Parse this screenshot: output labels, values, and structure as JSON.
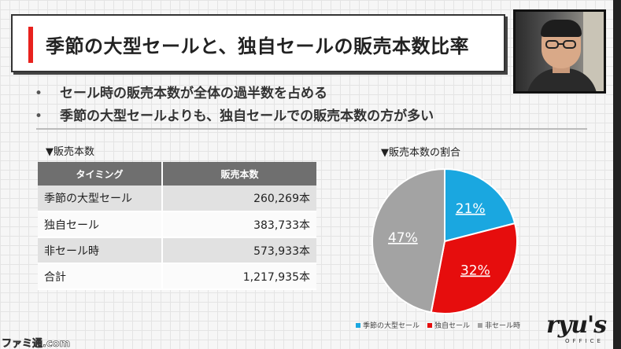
{
  "title": "季節の大型セールと、独自セールの販売本数比率",
  "bullets": [
    "セール時の販売本数が全体の過半数を占める",
    "季節の大型セールよりも、独自セールでの販売本数の方が多い"
  ],
  "bullet_marker": "•",
  "table_section_label": "▼販売本数",
  "table": {
    "headers": [
      "タイミング",
      "販売本数"
    ],
    "rows": [
      {
        "name": "季節の大型セール",
        "value": "260,269本"
      },
      {
        "name": "独自セール",
        "value": "383,733本"
      },
      {
        "name": "非セール時",
        "value": "573,933本"
      },
      {
        "name": "合計",
        "value": "1,217,935本"
      }
    ]
  },
  "chart_section_label": "▼販売本数の割合",
  "chart_data": {
    "type": "pie",
    "title": "▼販売本数の割合",
    "slices": [
      {
        "label": "季節の大型セール",
        "value": 21,
        "display": "21%",
        "color": "#1aa7e0"
      },
      {
        "label": "独自セール",
        "value": 32,
        "display": "32%",
        "color": "#e60d0d"
      },
      {
        "label": "非セール時",
        "value": 47,
        "display": "47%",
        "color": "#a3a3a3"
      }
    ],
    "legend_position": "bottom"
  },
  "logo": {
    "main": "ryu's",
    "sub": "OFFICE"
  },
  "watermark": "ファミ通.com",
  "colors": {
    "accent": "#e8211d",
    "table_header": "#6f6f6f"
  }
}
